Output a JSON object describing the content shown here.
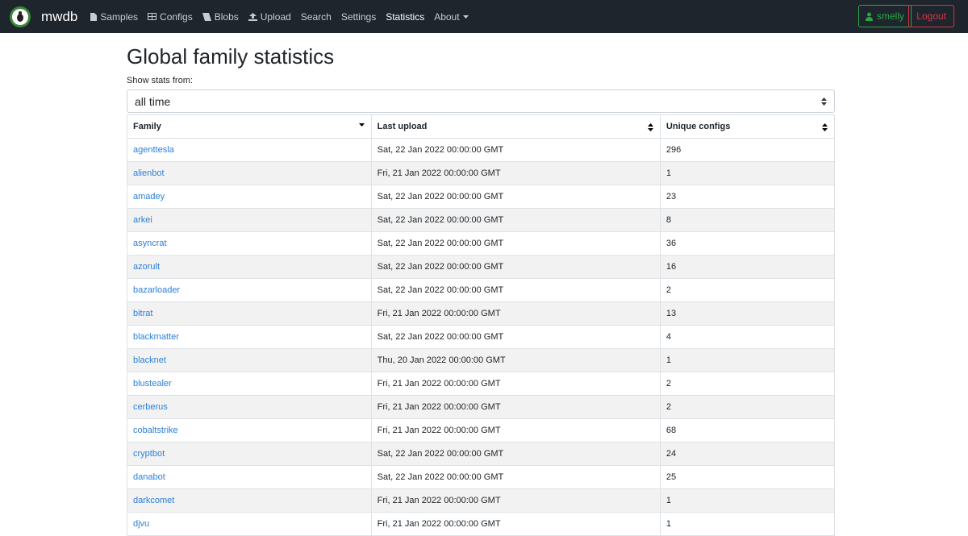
{
  "nav": {
    "brand": "mwdb",
    "links": [
      "Samples",
      "Configs",
      "Blobs",
      "Upload",
      "Search",
      "Settings",
      "Statistics",
      "About"
    ],
    "user": "smelly",
    "logout": "Logout"
  },
  "page": {
    "title": "Global family statistics",
    "filter_label": "Show stats from:",
    "filter_value": "all time"
  },
  "table": {
    "headers": [
      "Family",
      "Last upload",
      "Unique configs"
    ],
    "rows": [
      [
        "agenttesla",
        "Sat, 22 Jan 2022 00:00:00 GMT",
        296
      ],
      [
        "alienbot",
        "Fri, 21 Jan 2022 00:00:00 GMT",
        1
      ],
      [
        "amadey",
        "Sat, 22 Jan 2022 00:00:00 GMT",
        23
      ],
      [
        "arkei",
        "Sat, 22 Jan 2022 00:00:00 GMT",
        8
      ],
      [
        "asyncrat",
        "Sat, 22 Jan 2022 00:00:00 GMT",
        36
      ],
      [
        "azorult",
        "Sat, 22 Jan 2022 00:00:00 GMT",
        16
      ],
      [
        "bazarloader",
        "Sat, 22 Jan 2022 00:00:00 GMT",
        2
      ],
      [
        "bitrat",
        "Fri, 21 Jan 2022 00:00:00 GMT",
        13
      ],
      [
        "blackmatter",
        "Sat, 22 Jan 2022 00:00:00 GMT",
        4
      ],
      [
        "blacknet",
        "Thu, 20 Jan 2022 00:00:00 GMT",
        1
      ],
      [
        "blustealer",
        "Fri, 21 Jan 2022 00:00:00 GMT",
        2
      ],
      [
        "cerberus",
        "Fri, 21 Jan 2022 00:00:00 GMT",
        2
      ],
      [
        "cobaltstrike",
        "Fri, 21 Jan 2022 00:00:00 GMT",
        68
      ],
      [
        "cryptbot",
        "Sat, 22 Jan 2022 00:00:00 GMT",
        24
      ],
      [
        "danabot",
        "Sat, 22 Jan 2022 00:00:00 GMT",
        25
      ],
      [
        "darkcomet",
        "Fri, 21 Jan 2022 00:00:00 GMT",
        1
      ],
      [
        "djvu",
        "Fri, 21 Jan 2022 00:00:00 GMT",
        1
      ]
    ]
  }
}
